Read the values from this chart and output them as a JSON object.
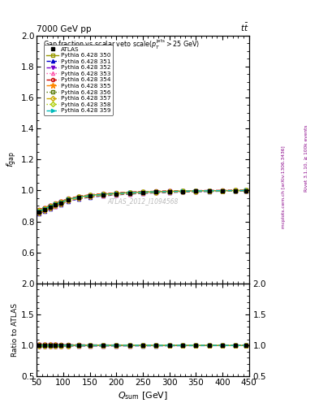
{
  "title_top": "7000 GeV pp",
  "title_tr": "tt",
  "watermark": "ATLAS_2012_I1094568",
  "xlim": [
    50,
    450
  ],
  "ylim_main": [
    0.4,
    2.0
  ],
  "ylim_ratio": [
    0.5,
    2.0
  ],
  "yticks_main": [
    0.6,
    0.8,
    1.0,
    1.2,
    1.4,
    1.6,
    1.8,
    2.0
  ],
  "yticks_ratio": [
    0.5,
    1.0,
    1.5,
    2.0
  ],
  "xticks": [
    100,
    200,
    300,
    400
  ],
  "series": [
    {
      "label": "ATLAS",
      "color": "#000000",
      "marker": "s",
      "fillstyle": "full",
      "linestyle": "none",
      "linewidth": 0
    },
    {
      "label": "Pythia 6.428 350",
      "color": "#999900",
      "marker": "s",
      "fillstyle": "none",
      "linestyle": "-",
      "linewidth": 1.0
    },
    {
      "label": "Pythia 6.428 351",
      "color": "#0000cc",
      "marker": "^",
      "fillstyle": "full",
      "linestyle": "--",
      "linewidth": 1.0
    },
    {
      "label": "Pythia 6.428 352",
      "color": "#7700cc",
      "marker": "v",
      "fillstyle": "full",
      "linestyle": "--",
      "linewidth": 1.0
    },
    {
      "label": "Pythia 6.428 353",
      "color": "#ff55aa",
      "marker": "^",
      "fillstyle": "none",
      "linestyle": ":",
      "linewidth": 1.0
    },
    {
      "label": "Pythia 6.428 354",
      "color": "#cc0000",
      "marker": "o",
      "fillstyle": "none",
      "linestyle": "--",
      "linewidth": 1.0
    },
    {
      "label": "Pythia 6.428 355",
      "color": "#ff8800",
      "marker": "*",
      "fillstyle": "full",
      "linestyle": "--",
      "linewidth": 1.0
    },
    {
      "label": "Pythia 6.428 356",
      "color": "#557700",
      "marker": "s",
      "fillstyle": "none",
      "linestyle": ":",
      "linewidth": 1.0
    },
    {
      "label": "Pythia 6.428 357",
      "color": "#ccaa00",
      "marker": "D",
      "fillstyle": "none",
      "linestyle": "--",
      "linewidth": 1.0
    },
    {
      "label": "Pythia 6.428 358",
      "color": "#aacc00",
      "marker": "D",
      "fillstyle": "none",
      "linestyle": ":",
      "linewidth": 1.0
    },
    {
      "label": "Pythia 6.428 359",
      "color": "#00bbbb",
      "marker": ">",
      "fillstyle": "full",
      "linestyle": "--",
      "linewidth": 1.0
    }
  ],
  "x_data": [
    55,
    65,
    75,
    85,
    95,
    110,
    130,
    150,
    175,
    200,
    225,
    250,
    275,
    300,
    325,
    350,
    375,
    400,
    425,
    445
  ],
  "atlas_y": [
    0.862,
    0.876,
    0.891,
    0.906,
    0.918,
    0.938,
    0.953,
    0.963,
    0.971,
    0.977,
    0.982,
    0.986,
    0.989,
    0.991,
    0.993,
    0.995,
    0.996,
    0.997,
    0.998,
    0.999
  ],
  "mc_offsets": [
    0.0,
    0.003,
    -0.004,
    0.004,
    -0.003,
    0.005,
    0.004,
    0.002,
    -0.002,
    0.003,
    0.002
  ],
  "right_label1": "Rivet 3.1.10, ≥ 100k events",
  "right_label2": "mcplots.cern.ch [arXiv:1306.3436]"
}
